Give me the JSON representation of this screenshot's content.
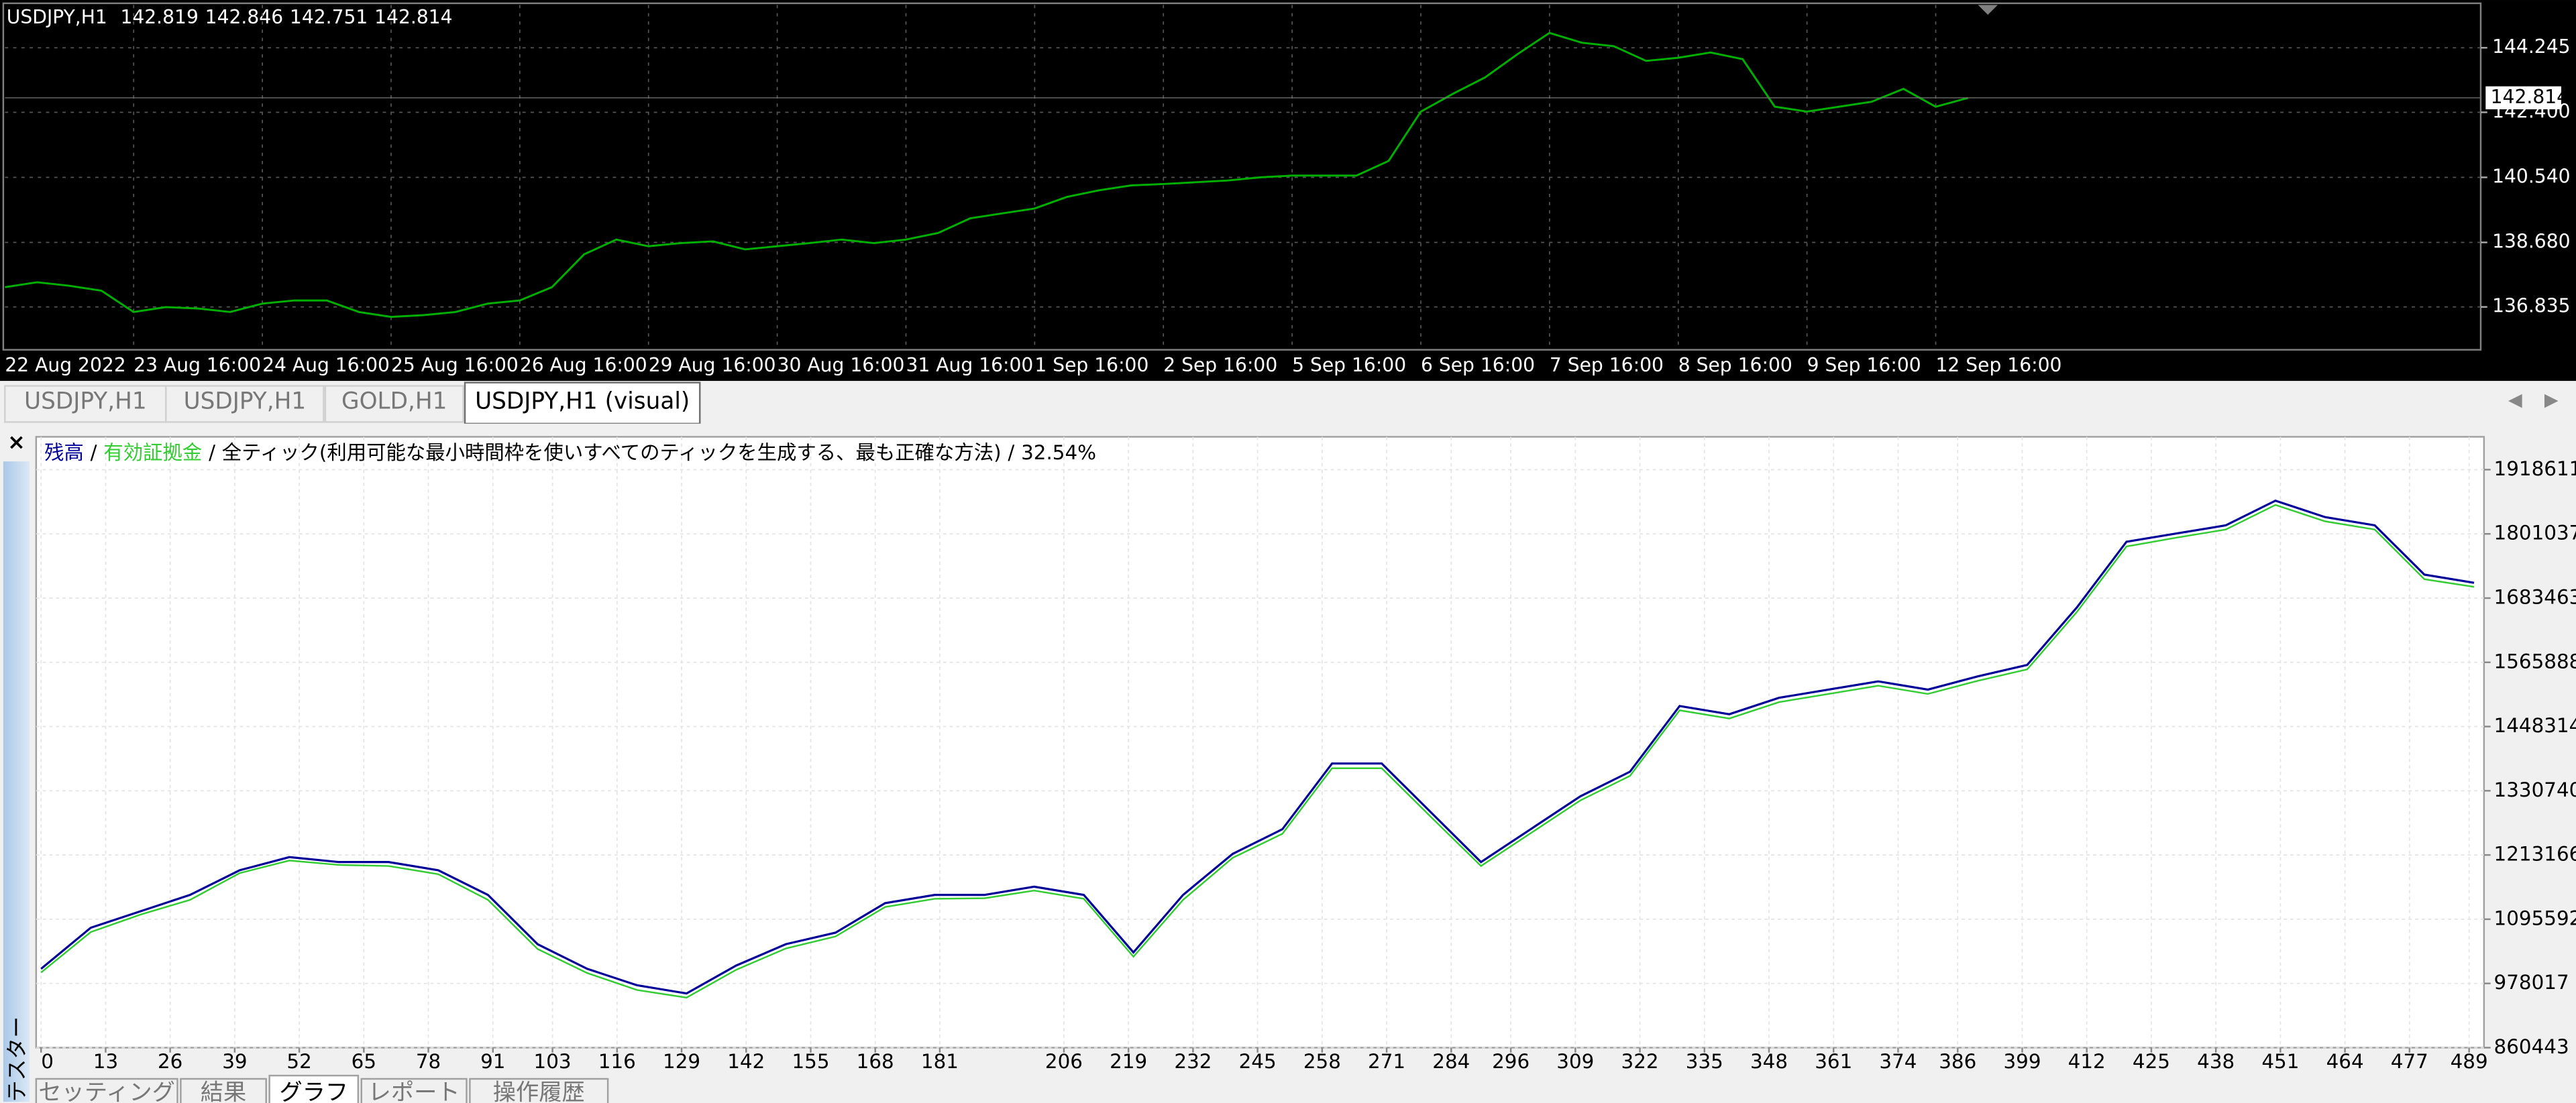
{
  "price_chart": {
    "type": "line",
    "symbol": "USDJPY,H1",
    "ohlc": [
      142.819,
      142.846,
      142.751,
      142.814
    ],
    "color": "#00b000",
    "values": [
      137.4,
      137.54,
      137.44,
      137.3,
      136.69,
      136.83,
      136.79,
      136.69,
      136.93,
      137.02,
      137.02,
      136.69,
      136.55,
      136.6,
      136.69,
      136.93,
      137.02,
      137.4,
      138.34,
      138.76,
      138.57,
      138.66,
      138.71,
      138.48,
      138.57,
      138.66,
      138.76,
      138.66,
      138.76,
      138.95,
      139.37,
      139.51,
      139.65,
      139.98,
      140.17,
      140.31,
      140.35,
      140.4,
      140.45,
      140.54,
      140.59,
      140.59,
      140.59,
      141.01,
      142.42,
      142.93,
      143.4,
      144.06,
      144.67,
      144.39,
      144.29,
      143.87,
      143.96,
      144.11,
      143.92,
      142.56,
      142.42,
      142.56,
      142.7,
      143.07,
      142.56,
      142.81
    ],
    "x_labels": [
      "22 Aug 2022",
      "23 Aug 16:00",
      "24 Aug 16:00",
      "25 Aug 16:00",
      "26 Aug 16:00",
      "29 Aug 16:00",
      "30 Aug 16:00",
      "31 Aug 16:00",
      "1 Sep 16:00",
      "2 Sep 16:00",
      "5 Sep 16:00",
      "6 Sep 16:00",
      "7 Sep 16:00",
      "8 Sep 16:00",
      "9 Sep 16:00",
      "12 Sep 16:00"
    ],
    "ylim": [
      135.61,
      145.47
    ],
    "yticks": [
      136.835,
      {
        "value": 138.68,
        "label": "138.680"
      },
      {
        "value": 140.54,
        "label": "140.540"
      },
      {
        "value": 142.4,
        "label": "142.400"
      },
      144.245
    ],
    "grid": true
  },
  "tabs": [
    "USDJPY,H1",
    "USDJPY,H1",
    "GOLD,H1",
    "USDJPY,H1 (visual)"
  ],
  "active_tab": 3,
  "tester": {
    "close": "×",
    "label": "テスター",
    "tabs": [
      "セッティング",
      "結果",
      "グラフ",
      "レポート",
      "操作履歴"
    ],
    "active_tab": 2
  },
  "chart_data": {
    "type": "line",
    "legend_separator": "/",
    "description": "全ティック(利用可能な最小時間枠を使いすべてのティックを生成する、最も正確な方法)",
    "modeling_quality": "32.54%",
    "x": [
      0,
      10,
      20,
      30,
      40,
      50,
      60,
      70,
      80,
      90,
      100,
      110,
      120,
      130,
      140,
      150,
      160,
      170,
      180,
      190,
      200,
      210,
      220,
      230,
      240,
      250,
      260,
      270,
      280,
      290,
      300,
      310,
      320,
      330,
      340,
      350,
      360,
      370,
      380,
      390,
      400,
      410,
      420,
      430,
      440,
      450,
      460,
      470,
      480,
      490
    ],
    "series": [
      {
        "name": "残高",
        "color": "#000099",
        "values": [
          1004780,
          1079950,
          1110020,
          1140090,
          1185200,
          1209260,
          1200230,
          1200230,
          1185200,
          1140090,
          1049880,
          1004780,
          974710,
          959670,
          1010790,
          1049880,
          1070930,
          1125060,
          1140090,
          1140090,
          1155130,
          1140090,
          1034850,
          1140090,
          1215270,
          1260370,
          1380650,
          1380650,
          1290440,
          1200230,
          1260370,
          1320510,
          1365620,
          1485900,
          1470860,
          1500930,
          1515970,
          1531000,
          1515970,
          1540030,
          1561070,
          1666320,
          1786600,
          1801630,
          1816670,
          1861770,
          1831700,
          1816670,
          1726460,
          1711420
        ]
      },
      {
        "name": "有効証拠金",
        "color": "#33cc33",
        "values": [
          998000,
          1072000,
          1104000,
          1131000,
          1180000,
          1203000,
          1195000,
          1193000,
          1178000,
          1131000,
          1041000,
          997000,
          966000,
          952000,
          1003000,
          1042000,
          1064000,
          1118000,
          1133000,
          1134000,
          1148000,
          1133000,
          1027000,
          1131000,
          1208000,
          1252000,
          1372000,
          1372000,
          1282000,
          1193000,
          1253000,
          1313000,
          1358000,
          1478000,
          1463000,
          1493000,
          1508000,
          1523000,
          1508000,
          1532000,
          1553000,
          1658000,
          1778000,
          1794000,
          1809000,
          1854000,
          1824000,
          1809000,
          1718000,
          1704000
        ]
      }
    ],
    "xlim": [
      0,
      492
    ],
    "xticks": [
      0,
      13,
      26,
      39,
      52,
      65,
      78,
      91,
      103,
      116,
      129,
      142,
      155,
      168,
      181,
      206,
      219,
      232,
      245,
      258,
      271,
      284,
      296,
      309,
      322,
      335,
      348,
      361,
      374,
      386,
      399,
      412,
      425,
      438,
      451,
      464,
      477,
      489
    ],
    "ylim": [
      860443,
      1978750
    ],
    "yticks": [
      860443,
      978017,
      1095592,
      1213166,
      1330740,
      1448314,
      1565888,
      1683463,
      1801037,
      1918611
    ],
    "grid": true
  }
}
